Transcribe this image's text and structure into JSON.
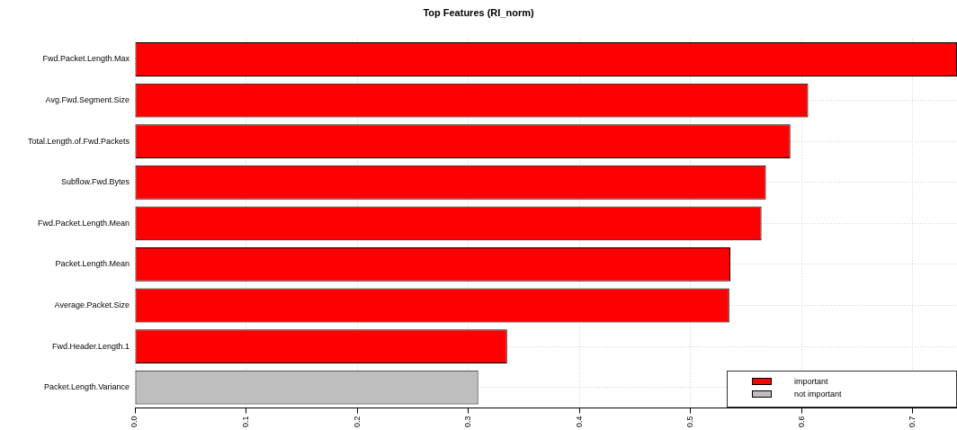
{
  "chart_data": {
    "type": "bar",
    "orientation": "horizontal",
    "title": "Top Features (RI_norm)",
    "categories": [
      "Fwd.Packet.Length.Max",
      "Avg.Fwd.Segment.Size",
      "Total.Length.of.Fwd.Packets",
      "Subflow.Fwd.Bytes",
      "Fwd.Packet.Length.Mean",
      "Packet.Length.Mean",
      "Average.Packet.Size",
      "Fwd.Header.Length.1",
      "Packet.Length.Variance"
    ],
    "series": [
      {
        "name": "important",
        "color": "#ff0000",
        "values": [
          0.74,
          0.606,
          0.59,
          0.568,
          0.564,
          0.536,
          0.535,
          0.335,
          null
        ]
      },
      {
        "name": "not important",
        "color": "#bebebe",
        "values": [
          null,
          null,
          null,
          null,
          null,
          null,
          null,
          null,
          0.309
        ]
      }
    ],
    "xlim": [
      0,
      0.74
    ],
    "xticks": [
      {
        "value": 0,
        "label": "0.0"
      },
      0.1,
      0.2,
      0.3,
      0.4,
      0.5,
      0.6,
      0.7
    ],
    "grid": true,
    "legend": "bottom right"
  }
}
